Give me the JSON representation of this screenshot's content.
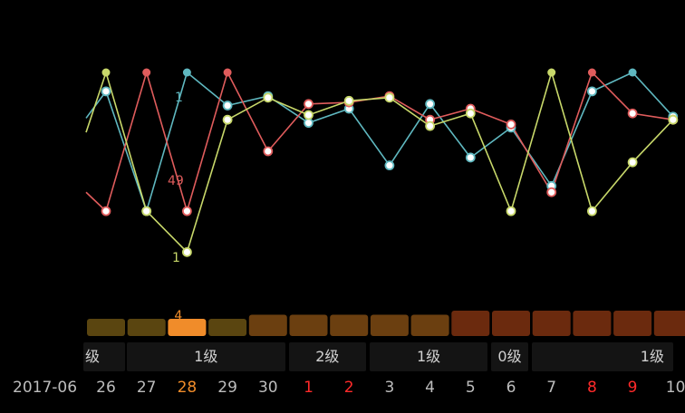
{
  "period": "2017-06",
  "days": [
    {
      "label": "26",
      "style": "normal"
    },
    {
      "label": "27",
      "style": "normal"
    },
    {
      "label": "28",
      "style": "today"
    },
    {
      "label": "29",
      "style": "normal"
    },
    {
      "label": "30",
      "style": "normal"
    },
    {
      "label": "1",
      "style": "red"
    },
    {
      "label": "2",
      "style": "red"
    },
    {
      "label": "3",
      "style": "normal"
    },
    {
      "label": "4",
      "style": "normal"
    },
    {
      "label": "5",
      "style": "normal"
    },
    {
      "label": "6",
      "style": "normal"
    },
    {
      "label": "7",
      "style": "normal"
    },
    {
      "label": "8",
      "style": "red"
    },
    {
      "label": "9",
      "style": "red"
    },
    {
      "label": "10",
      "style": "normal"
    }
  ],
  "grades": [
    {
      "label": "级",
      "from": 0,
      "to": 0
    },
    {
      "label": "1级",
      "from": 1,
      "to": 4
    },
    {
      "label": "2级",
      "from": 5,
      "to": 6
    },
    {
      "label": "1级",
      "from": 7,
      "to": 9
    },
    {
      "label": "0级",
      "from": 10,
      "to": 10
    },
    {
      "label": "1级",
      "from": 11,
      "to": 14
    }
  ],
  "chart_data": {
    "type": "line",
    "x": [
      "26",
      "27",
      "28",
      "29",
      "30",
      "1",
      "2",
      "3",
      "4",
      "5",
      "6",
      "7",
      "8",
      "9",
      "10"
    ],
    "series": [
      {
        "color": "#5fb8c0",
        "values": [
          88,
          12,
          100,
          79,
          85,
          68,
          77,
          41,
          80,
          46,
          65,
          28,
          88,
          100,
          72
        ]
      },
      {
        "color": "#e05c5c",
        "values": [
          12,
          100,
          12,
          100,
          50,
          80,
          81,
          85,
          70,
          77,
          67,
          24,
          100,
          74,
          70
        ]
      },
      {
        "color": "#c8d86a",
        "values": [
          100,
          12,
          -14,
          70,
          84,
          73,
          82,
          84,
          66,
          74,
          12,
          100,
          12,
          43,
          70
        ]
      }
    ],
    "series_start_values": [
      71,
      24,
      62
    ],
    "annotations": [
      {
        "text": "1",
        "series": 0,
        "index": 1,
        "color": "#5fb8c0"
      },
      {
        "text": "49",
        "series": 1,
        "index": 1,
        "color": "#e05c5c"
      },
      {
        "text": "1",
        "series": 2,
        "index": 1,
        "color": "#c8d86a"
      }
    ],
    "bars": {
      "values": [
        2,
        2,
        2,
        2,
        3,
        3,
        3,
        3,
        3,
        4,
        4,
        4,
        4,
        4,
        4
      ],
      "colors": [
        "#5a4510",
        "#5a4510",
        "#f08c2a",
        "#5a4510",
        "#6b3f10",
        "#6b3f10",
        "#6b3f10",
        "#6b3f10",
        "#6b3f10",
        "#6b2a0e",
        "#6b2a0e",
        "#6b2a0e",
        "#6b2a0e",
        "#6b2a0e",
        "#6b2a0e"
      ],
      "highlight_label": "4",
      "highlight_index": 2
    }
  }
}
